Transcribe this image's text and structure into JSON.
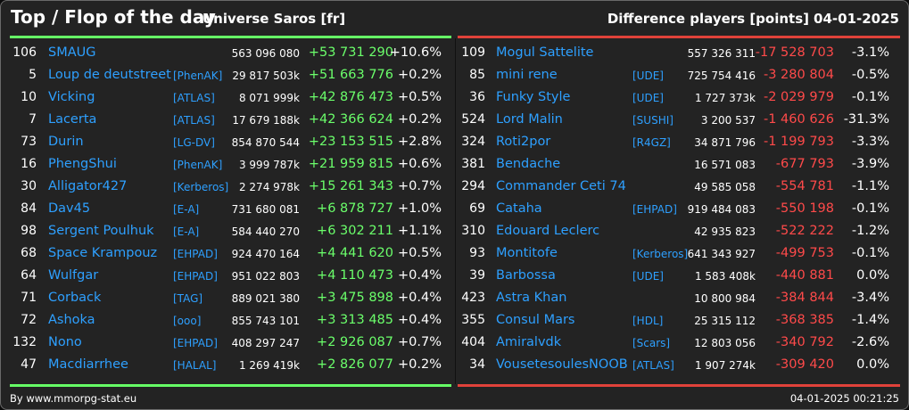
{
  "header": {
    "title": "Top / Flop of the day",
    "server": "Universe Saros [fr]",
    "metric": "Difference players [points]",
    "date": "04-01-2025"
  },
  "colors": {
    "positive": "#6bff6b",
    "negative": "#ff4a4a",
    "link": "#2ea0ff",
    "top_bar": "#66ff66",
    "flop_bar": "#e0423a",
    "background": "#232323"
  },
  "top": [
    {
      "rank": "106",
      "name": "SMAUG",
      "ally": "",
      "score": "563 096 080",
      "diff": "+53 731 290",
      "pct": "+10.6%"
    },
    {
      "rank": "5",
      "name": "Loup de deutstreet",
      "ally": "[PhenAK]",
      "score": "29 817 503k",
      "diff": "+51 663 776",
      "pct": "+0.2%"
    },
    {
      "rank": "10",
      "name": "Vicking",
      "ally": "[ATLAS]",
      "score": "8 071 999k",
      "diff": "+42 876 473",
      "pct": "+0.5%"
    },
    {
      "rank": "7",
      "name": "Lacerta",
      "ally": "[ATLAS]",
      "score": "17 679 188k",
      "diff": "+42 366 624",
      "pct": "+0.2%"
    },
    {
      "rank": "73",
      "name": "Durin",
      "ally": "[LG-DV]",
      "score": "854 870 544",
      "diff": "+23 153 515",
      "pct": "+2.8%"
    },
    {
      "rank": "16",
      "name": "PhengShui",
      "ally": "[PhenAK]",
      "score": "3 999 787k",
      "diff": "+21 959 815",
      "pct": "+0.6%"
    },
    {
      "rank": "30",
      "name": "Alligator427",
      "ally": "[Kerberos]",
      "score": "2 274 978k",
      "diff": "+15 261 343",
      "pct": "+0.7%"
    },
    {
      "rank": "84",
      "name": "Dav45",
      "ally": "[E-A]",
      "score": "731 680 081",
      "diff": "+6 878 727",
      "pct": "+1.0%"
    },
    {
      "rank": "98",
      "name": "Sergent Poulhuk",
      "ally": "[E-A]",
      "score": "584 440 270",
      "diff": "+6 302 211",
      "pct": "+1.1%"
    },
    {
      "rank": "68",
      "name": "Space Krampouz",
      "ally": "[EHPAD]",
      "score": "924 470 164",
      "diff": "+4 441 620",
      "pct": "+0.5%"
    },
    {
      "rank": "64",
      "name": "Wulfgar",
      "ally": "[EHPAD]",
      "score": "951 022 803",
      "diff": "+4 110 473",
      "pct": "+0.4%"
    },
    {
      "rank": "71",
      "name": "Corback",
      "ally": "[TAG]",
      "score": "889 021 380",
      "diff": "+3 475 898",
      "pct": "+0.4%"
    },
    {
      "rank": "72",
      "name": "Ashoka",
      "ally": "[ooo]",
      "score": "855 743 101",
      "diff": "+3 313 485",
      "pct": "+0.4%"
    },
    {
      "rank": "132",
      "name": "Nono",
      "ally": "[EHPAD]",
      "score": "408 297 247",
      "diff": "+2 926 087",
      "pct": "+0.7%"
    },
    {
      "rank": "47",
      "name": "Macdiarrhee",
      "ally": "[HALAL]",
      "score": "1 269 419k",
      "diff": "+2 826 077",
      "pct": "+0.2%"
    }
  ],
  "flop": [
    {
      "rank": "109",
      "name": "Mogul Sattelite",
      "ally": "",
      "score": "557 326 311",
      "diff": "-17 528 703",
      "pct": "-3.1%"
    },
    {
      "rank": "85",
      "name": "mini rene",
      "ally": "[UDE]",
      "score": "725 754 416",
      "diff": "-3 280 804",
      "pct": "-0.5%"
    },
    {
      "rank": "36",
      "name": "Funky Style",
      "ally": "[UDE]",
      "score": "1 727 373k",
      "diff": "-2 029 979",
      "pct": "-0.1%"
    },
    {
      "rank": "524",
      "name": "Lord Malin",
      "ally": "[SUSHI]",
      "score": "3 200 537",
      "diff": "-1 460 626",
      "pct": "-31.3%"
    },
    {
      "rank": "324",
      "name": "Roti2por",
      "ally": "[R4GZ]",
      "score": "34 871 796",
      "diff": "-1 199 793",
      "pct": "-3.3%"
    },
    {
      "rank": "381",
      "name": "Bendache",
      "ally": "",
      "score": "16 571 083",
      "diff": "-677 793",
      "pct": "-3.9%"
    },
    {
      "rank": "294",
      "name": "Commander Ceti 74",
      "ally": "",
      "score": "49 585 058",
      "diff": "-554 781",
      "pct": "-1.1%"
    },
    {
      "rank": "69",
      "name": "Cataha",
      "ally": "[EHPAD]",
      "score": "919 484 083",
      "diff": "-550 198",
      "pct": "-0.1%"
    },
    {
      "rank": "310",
      "name": "Edouard Leclerc",
      "ally": "",
      "score": "42 935 823",
      "diff": "-522 222",
      "pct": "-1.2%"
    },
    {
      "rank": "93",
      "name": "Montitofe",
      "ally": "[Kerberos]",
      "score": "641 343 927",
      "diff": "-499 753",
      "pct": "-0.1%"
    },
    {
      "rank": "39",
      "name": "Barbossa",
      "ally": "[UDE]",
      "score": "1 583 408k",
      "diff": "-440 881",
      "pct": "0.0%"
    },
    {
      "rank": "423",
      "name": "Astra Khan",
      "ally": "",
      "score": "10 800 984",
      "diff": "-384 844",
      "pct": "-3.4%"
    },
    {
      "rank": "355",
      "name": "Consul Mars",
      "ally": "[HDL]",
      "score": "25 315 112",
      "diff": "-368 385",
      "pct": "-1.4%"
    },
    {
      "rank": "404",
      "name": "Amiralvdk",
      "ally": "[Scars]",
      "score": "12 803 056",
      "diff": "-340 792",
      "pct": "-2.6%"
    },
    {
      "rank": "34",
      "name": "VousetesoulesNOOB",
      "ally": "[ATLAS]",
      "score": "1 907 274k",
      "diff": "-309 420",
      "pct": "0.0%"
    }
  ],
  "footer": {
    "credit": "By www.mmorpg-stat.eu",
    "timestamp": "04-01-2025 00:21:25"
  }
}
